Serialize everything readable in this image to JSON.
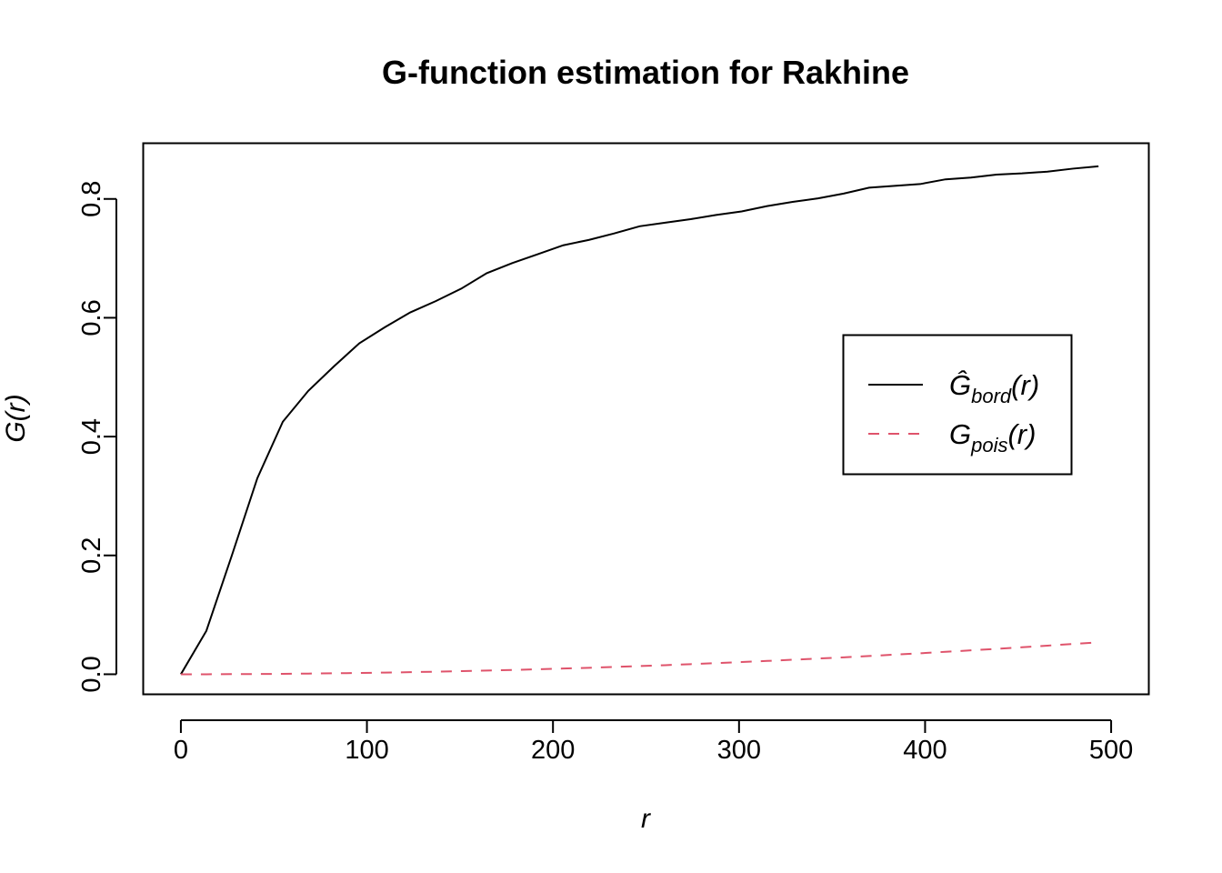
{
  "chart_data": {
    "type": "line",
    "title": "G-function estimation for Rakhine",
    "xlabel": "r",
    "ylabel": "G(r)",
    "xlim": [
      -20,
      520
    ],
    "ylim": [
      -0.033,
      0.893
    ],
    "x_ticks": [
      "0",
      "100",
      "200",
      "300",
      "400",
      "500"
    ],
    "y_ticks": [
      "0.0",
      "0.2",
      "0.4",
      "0.6",
      "0.8"
    ],
    "legend_position": "right",
    "series": [
      {
        "name": "Ĝbord(r)",
        "legend": {
          "base": "Ĝ",
          "sub": "bord",
          "arg": "(r)"
        },
        "color": "#000000",
        "dash": "solid",
        "x": [
          0,
          13.7,
          27.4,
          41.1,
          54.8,
          68.5,
          82.2,
          95.9,
          109.6,
          123.3,
          137,
          150.7,
          164.4,
          178.1,
          191.8,
          205.5,
          219.2,
          232.9,
          246.6,
          260.3,
          274,
          287.7,
          301.4,
          315.1,
          328.8,
          342.5,
          356.2,
          369.9,
          383.6,
          397.3,
          411,
          424.7,
          438.4,
          452.1,
          465.8,
          479.5,
          493.2
        ],
        "y": [
          0.0,
          0.073,
          0.2,
          0.33,
          0.425,
          0.477,
          0.518,
          0.557,
          0.584,
          0.609,
          0.628,
          0.649,
          0.675,
          0.692,
          0.707,
          0.722,
          0.731,
          0.742,
          0.754,
          0.76,
          0.766,
          0.773,
          0.779,
          0.788,
          0.795,
          0.801,
          0.809,
          0.819,
          0.822,
          0.825,
          0.833,
          0.836,
          0.841,
          0.843,
          0.846,
          0.851,
          0.855
        ]
      },
      {
        "name": "Gpois(r)",
        "legend": {
          "base": "G",
          "sub": "pois",
          "arg": "(r)"
        },
        "color": "#DF536B",
        "dash": "dashed",
        "x": [
          0,
          13.7,
          27.4,
          41.1,
          54.8,
          68.5,
          82.2,
          95.9,
          109.6,
          123.3,
          137,
          150.7,
          164.4,
          178.1,
          191.8,
          205.5,
          219.2,
          232.9,
          246.6,
          260.3,
          274,
          287.7,
          301.4,
          315.1,
          328.8,
          342.5,
          356.2,
          369.9,
          383.6,
          397.3,
          411,
          424.7,
          438.4,
          452.1,
          465.8,
          479.5,
          493.2
        ],
        "y": [
          0.0,
          0.0,
          0.0002,
          0.0004,
          0.0007,
          0.0011,
          0.0016,
          0.0021,
          0.0028,
          0.0035,
          0.0043,
          0.0052,
          0.0062,
          0.0072,
          0.0084,
          0.0096,
          0.0109,
          0.0123,
          0.0138,
          0.0153,
          0.017,
          0.0187,
          0.0205,
          0.0224,
          0.0244,
          0.0264,
          0.0285,
          0.0307,
          0.033,
          0.0353,
          0.0378,
          0.0402,
          0.0428,
          0.0455,
          0.0482,
          0.0509,
          0.0538
        ]
      }
    ]
  }
}
